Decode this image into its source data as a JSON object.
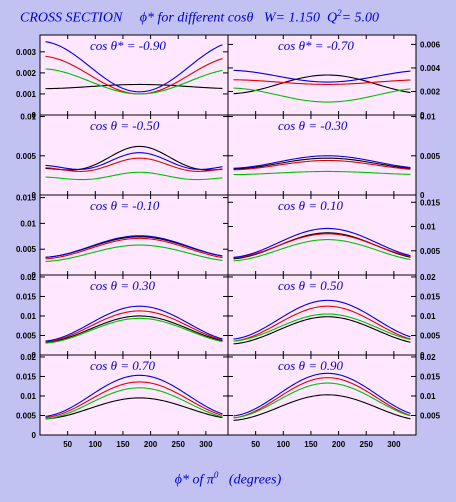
{
  "title": {
    "cross_section": "CROSS SECTION",
    "phi_text": "ϕ* for different cosθ",
    "w_text": "W= 1.150",
    "q_text": "Q",
    "q_sup": "2",
    "q_val": "= 5.00"
  },
  "xaxis": {
    "main": "ϕ* of π",
    "sup": "0",
    "units": "(degrees)"
  },
  "chart_data": {
    "type": "line",
    "xlim": [
      0,
      340
    ],
    "xticks": [
      "50",
      "100",
      "150",
      "200",
      "250",
      "300"
    ],
    "xtick_values": [
      50,
      100,
      150,
      200,
      250,
      300
    ],
    "colors": {
      "black": "#000000",
      "red": "#e00000",
      "green": "#00c000",
      "blue": "#0000e0",
      "background": "#ffe8ff"
    },
    "panels": [
      {
        "label": "cos θ* = -0.90",
        "ylim": [
          0,
          0.0038
        ],
        "yticks": [
          "0",
          "0.001",
          "0.002",
          "0.003"
        ],
        "ytick_values": [
          0,
          0.001,
          0.002,
          0.003
        ],
        "yside": "left",
        "series": [
          {
            "color": "black",
            "a": 0.00135,
            "b": 0.0001,
            "c": 0
          },
          {
            "color": "red",
            "a": 0.0019,
            "b": -0.0009,
            "c": 0
          },
          {
            "color": "green",
            "a": 0.0016,
            "b": -0.0006,
            "c": 0
          },
          {
            "color": "blue",
            "a": 0.0023,
            "b": -0.0012,
            "c": 0
          }
        ]
      },
      {
        "label": "cos θ* = -0.70",
        "ylim": [
          0,
          0.0068
        ],
        "yticks": [
          "0",
          "0.002",
          "0.004",
          "0.006"
        ],
        "ytick_values": [
          0,
          0.002,
          0.004,
          0.006
        ],
        "yside": "right",
        "series": [
          {
            "color": "black",
            "a": 0.0026,
            "b": 0.0008,
            "c": 0
          },
          {
            "color": "red",
            "a": 0.0028,
            "b": -0.0002,
            "c": 0
          },
          {
            "color": "green",
            "a": 0.0017,
            "b": -0.0006,
            "c": 0
          },
          {
            "color": "blue",
            "a": 0.0033,
            "b": -0.0005,
            "c": 0
          }
        ]
      },
      {
        "label": "cos θ = -0.50",
        "ylim": [
          0,
          0.0102
        ],
        "yticks": [
          "0",
          "0.005",
          "0.01"
        ],
        "ytick_values": [
          0,
          0.005,
          0.01
        ],
        "yside": "left",
        "series": [
          {
            "color": "black",
            "a": 0.0042,
            "b": 0.0014,
            "c": 0.0006
          },
          {
            "color": "red",
            "a": 0.0036,
            "b": 0.0006,
            "c": 0.0005
          },
          {
            "color": "green",
            "a": 0.0023,
            "b": 0.0003,
            "c": 0.0003
          },
          {
            "color": "blue",
            "a": 0.004,
            "b": 0.0008,
            "c": 0.0006
          }
        ]
      },
      {
        "label": "cos θ = -0.30",
        "ylim": [
          0,
          0.0102
        ],
        "yticks": [
          "0",
          "0.005",
          "0.01"
        ],
        "ytick_values": [
          0,
          0.005,
          0.01
        ],
        "yside": "right",
        "series": [
          {
            "color": "black",
            "a": 0.004,
            "b": 0.0007,
            "c": 0
          },
          {
            "color": "red",
            "a": 0.0038,
            "b": 0.0006,
            "c": 0
          },
          {
            "color": "green",
            "a": 0.0028,
            "b": 0.0002,
            "c": 0
          },
          {
            "color": "blue",
            "a": 0.0042,
            "b": 0.0008,
            "c": 0
          }
        ]
      },
      {
        "label": "cos θ = -0.10",
        "ylim": [
          0,
          0.0155
        ],
        "yticks": [
          "0",
          "0.005",
          "0.01",
          "0.015"
        ],
        "ytick_values": [
          0,
          0.005,
          0.01,
          0.015
        ],
        "yside": "left",
        "series": [
          {
            "color": "black",
            "a": 0.0054,
            "b": 0.002,
            "c": 0
          },
          {
            "color": "red",
            "a": 0.0051,
            "b": 0.002,
            "c": 0
          },
          {
            "color": "green",
            "a": 0.0042,
            "b": 0.0016,
            "c": 0
          },
          {
            "color": "blue",
            "a": 0.0055,
            "b": 0.0021,
            "c": 0
          }
        ]
      },
      {
        "label": "cos θ = 0.10",
        "ylim": [
          0,
          0.0165
        ],
        "yticks": [
          "0.005",
          "0.01",
          "0.015"
        ],
        "ytick_values": [
          0.005,
          0.01,
          0.015
        ],
        "yside": "right",
        "series": [
          {
            "color": "black",
            "a": 0.006,
            "b": 0.0027,
            "c": 0
          },
          {
            "color": "red",
            "a": 0.006,
            "b": 0.0025,
            "c": 0
          },
          {
            "color": "green",
            "a": 0.0051,
            "b": 0.0022,
            "c": 0
          },
          {
            "color": "blue",
            "a": 0.0066,
            "b": 0.003,
            "c": 0
          }
        ]
      },
      {
        "label": "cos θ = 0.30",
        "ylim": [
          0,
          0.0205
        ],
        "yticks": [
          "0",
          "0.005",
          "0.01",
          "0.015",
          "0.02"
        ],
        "ytick_values": [
          0,
          0.005,
          0.01,
          0.015,
          0.02
        ],
        "yside": "left",
        "series": [
          {
            "color": "black",
            "a": 0.0066,
            "b": 0.0034,
            "c": 0
          },
          {
            "color": "red",
            "a": 0.0073,
            "b": 0.004,
            "c": 0
          },
          {
            "color": "green",
            "a": 0.0062,
            "b": 0.0032,
            "c": 0
          },
          {
            "color": "blue",
            "a": 0.008,
            "b": 0.0045,
            "c": 0
          }
        ]
      },
      {
        "label": "cos θ = 0.50",
        "ylim": [
          0,
          0.0205
        ],
        "yticks": [
          "0",
          "0.005",
          "0.01",
          "0.015",
          "0.02"
        ],
        "ytick_values": [
          0,
          0.005,
          0.01,
          0.015,
          0.02
        ],
        "yside": "right",
        "series": [
          {
            "color": "black",
            "a": 0.0063,
            "b": 0.0035,
            "c": 0
          },
          {
            "color": "red",
            "a": 0.008,
            "b": 0.0045,
            "c": 0
          },
          {
            "color": "green",
            "a": 0.007,
            "b": 0.0035,
            "c": 0
          },
          {
            "color": "blue",
            "a": 0.009,
            "b": 0.005,
            "c": 0
          }
        ]
      },
      {
        "label": "cos θ = 0.70",
        "ylim": [
          0,
          0.0205
        ],
        "yticks": [
          "0",
          "0.005",
          "0.01",
          "0.015",
          "0.02"
        ],
        "ytick_values": [
          0,
          0.005,
          0.01,
          0.015,
          0.02
        ],
        "yside": "left",
        "series": [
          {
            "color": "black",
            "a": 0.0068,
            "b": 0.0027,
            "c": 0
          },
          {
            "color": "red",
            "a": 0.009,
            "b": 0.0046,
            "c": 0
          },
          {
            "color": "green",
            "a": 0.0081,
            "b": 0.004,
            "c": 0
          },
          {
            "color": "blue",
            "a": 0.01,
            "b": 0.0053,
            "c": 0
          }
        ]
      },
      {
        "label": "cos θ = 0.90",
        "ylim": [
          0,
          0.0205
        ],
        "yticks": [
          "0.005",
          "0.01",
          "0.015",
          "0.02"
        ],
        "ytick_values": [
          0.005,
          0.01,
          0.015,
          0.02
        ],
        "yside": "right",
        "series": [
          {
            "color": "black",
            "a": 0.007,
            "b": 0.0033,
            "c": 0
          },
          {
            "color": "red",
            "a": 0.0095,
            "b": 0.0052,
            "c": 0
          },
          {
            "color": "green",
            "a": 0.0088,
            "b": 0.0045,
            "c": 0
          },
          {
            "color": "blue",
            "a": 0.0103,
            "b": 0.0055,
            "c": 0
          }
        ]
      }
    ]
  }
}
